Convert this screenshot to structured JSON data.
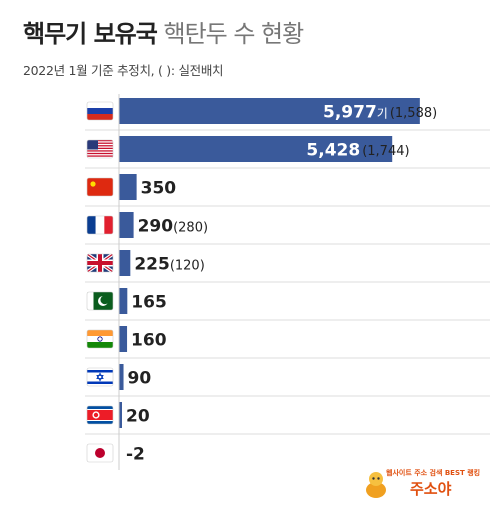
{
  "header": {
    "title_bold": "핵무기 보유국",
    "title_light": "핵탄두 수 현황",
    "subtitle": "2022년 1월 기준 추정치, ( ): 실전배치"
  },
  "chart_data": {
    "type": "bar",
    "orientation": "horizontal",
    "title": "핵무기 보유국 핵탄두 수 현황",
    "subtitle": "2022년 1월 기준 추정치, ( ): 실전배치",
    "categories": [
      "Russia",
      "United States",
      "China",
      "France",
      "United Kingdom",
      "Pakistan",
      "India",
      "Israel",
      "North Korea",
      "Japan"
    ],
    "flags": [
      "flag-russia-icon",
      "flag-usa-icon",
      "flag-china-icon",
      "flag-france-icon",
      "flag-uk-icon",
      "flag-pakistan-icon",
      "flag-india-icon",
      "flag-israel-icon",
      "flag-north-korea-icon",
      "flag-japan-icon"
    ],
    "series": [
      {
        "values": [
          5977,
          5428,
          350,
          290,
          225,
          165,
          160,
          90,
          20,
          -2
        ],
        "labels": [
          "5,977",
          "5,428",
          "350",
          "290",
          "225",
          "165",
          "160",
          "90",
          "20",
          "-2"
        ]
      }
    ],
    "deployed_labels": [
      "(1,588)",
      "(1,744)",
      "",
      "(280)",
      "(120)",
      "",
      "",
      "",
      "",
      ""
    ],
    "unit_suffix": [
      "기",
      "",
      "",
      "",
      "",
      "",
      "",
      "",
      "",
      ""
    ],
    "bar_color": "#3a5a9b",
    "xlim": [
      0,
      6000
    ],
    "grid": false,
    "legend": "none"
  },
  "watermark": {
    "top_text": "웹사이트 주소 검색 BEST 랭킹",
    "main_text": "주소야"
  },
  "colors": {
    "bar": "#3a5a9b",
    "separator": "#dddddd",
    "text": "#222222",
    "watermark": "#e05010"
  }
}
